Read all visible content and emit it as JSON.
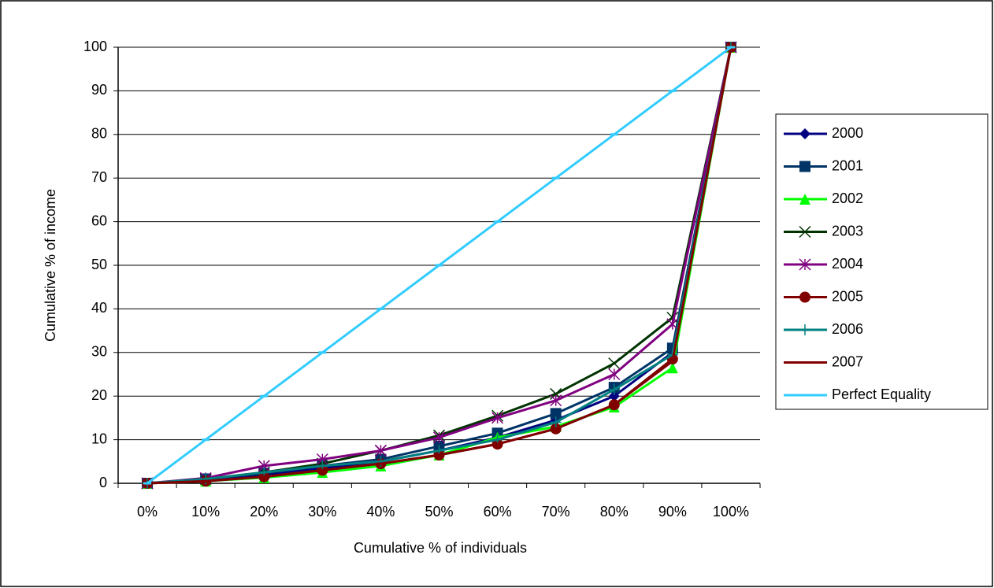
{
  "chart_data": {
    "type": "line",
    "x_label": "Cumulative % of individuals",
    "y_label": "Cumulative % of income",
    "categories": [
      "0%",
      "10%",
      "20%",
      "30%",
      "40%",
      "50%",
      "60%",
      "70%",
      "80%",
      "90%",
      "100%"
    ],
    "ylim": [
      0,
      100
    ],
    "yticks": [
      0,
      10,
      20,
      30,
      40,
      50,
      60,
      70,
      80,
      90,
      100
    ],
    "grid": true,
    "legend": "right",
    "series": [
      {
        "name": "2000",
        "color": "#000080",
        "marker": "diamond",
        "values": [
          0,
          0.8,
          2,
          3.5,
          5,
          7.5,
          10.5,
          14.5,
          20,
          30,
          100
        ]
      },
      {
        "name": "2001",
        "color": "#003366",
        "marker": "square",
        "values": [
          0,
          1,
          2.3,
          4,
          5.5,
          8.5,
          11.5,
          16,
          22,
          31,
          100
        ]
      },
      {
        "name": "2002",
        "color": "#00ff00",
        "marker": "triangle",
        "values": [
          0,
          0.5,
          1.3,
          2.5,
          4,
          6.5,
          10.5,
          13,
          17.5,
          26.5,
          100
        ]
      },
      {
        "name": "2003",
        "color": "#003300",
        "marker": "x",
        "values": [
          0,
          1,
          2.5,
          4.5,
          7.5,
          11,
          15.5,
          20.5,
          27.5,
          38,
          100
        ]
      },
      {
        "name": "2004",
        "color": "#800080",
        "marker": "star",
        "values": [
          0,
          1.2,
          4,
          5.5,
          7.5,
          10.5,
          15,
          19,
          25,
          36.5,
          100
        ]
      },
      {
        "name": "2005",
        "color": "#800000",
        "marker": "circle",
        "values": [
          0,
          0.5,
          1.5,
          3,
          4.5,
          6.5,
          9,
          12.5,
          18,
          28.5,
          100
        ]
      },
      {
        "name": "2006",
        "color": "#008080",
        "marker": "plus",
        "values": [
          0,
          1,
          2.5,
          4,
          5,
          7.5,
          10,
          14,
          21.5,
          29.5,
          100
        ]
      },
      {
        "name": "2007",
        "color": "#800000",
        "marker": "dash",
        "values": [
          0,
          0.5,
          1.5,
          3,
          4.5,
          6.5,
          9,
          12.5,
          18,
          28,
          100
        ]
      },
      {
        "name": "Perfect Equality",
        "color": "#33ccff",
        "marker": "dash",
        "values": [
          0,
          10,
          20,
          30,
          40,
          50,
          60,
          70,
          80,
          90,
          100
        ]
      }
    ]
  }
}
